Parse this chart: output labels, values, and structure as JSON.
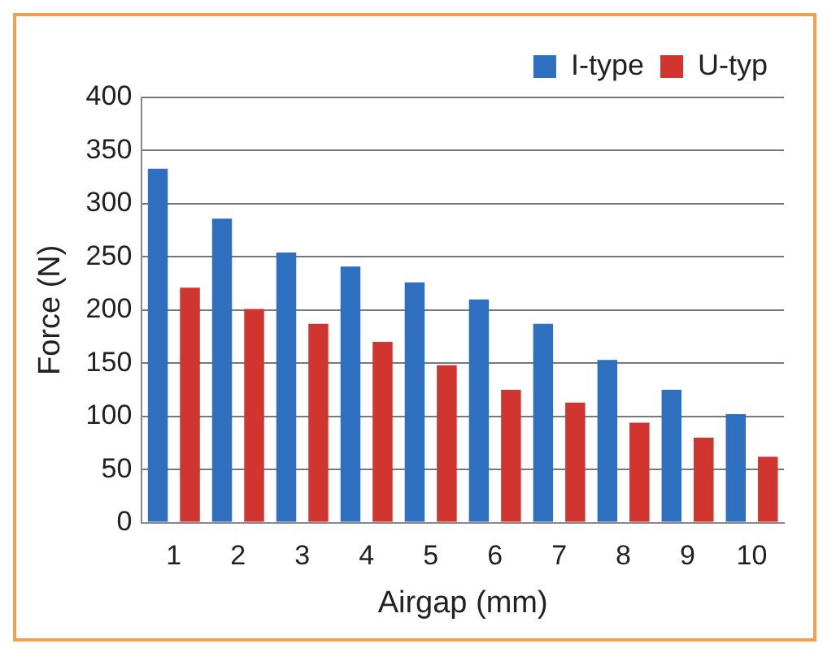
{
  "chart_data": {
    "type": "bar",
    "xlabel": "Airgap (mm)",
    "ylabel": "Force (N)",
    "categories": [
      "1",
      "2",
      "3",
      "4",
      "5",
      "6",
      "7",
      "8",
      "9",
      "10"
    ],
    "series": [
      {
        "name": "I-type",
        "color": "#2e6fc0",
        "values": [
          333,
          286,
          254,
          241,
          226,
          210,
          187,
          153,
          125,
          102
        ]
      },
      {
        "name": "U-typ",
        "color": "#d03530",
        "values": [
          221,
          201,
          187,
          170,
          148,
          125,
          113,
          94,
          80,
          62
        ]
      }
    ],
    "ylim": [
      0,
      400
    ],
    "yticks": [
      0,
      50,
      100,
      150,
      200,
      250,
      300,
      350,
      400
    ],
    "grid": "y",
    "legend": "top right"
  }
}
